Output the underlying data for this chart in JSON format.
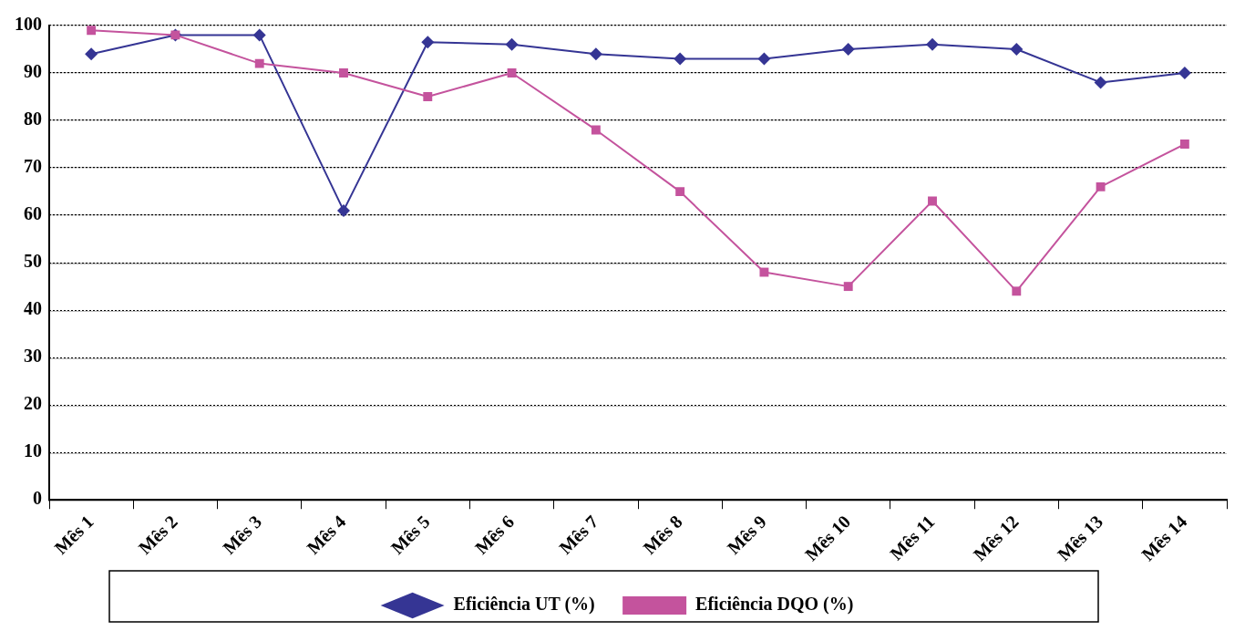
{
  "chart_data": {
    "type": "line",
    "categories": [
      "Mês 1",
      "Mês 2",
      "Mês 3",
      "Mês 4",
      "Mês 5",
      "Mês 6",
      "Mês 7",
      "Mês 8",
      "Mês 9",
      "Mês 10",
      "Mês 11",
      "Mês 12",
      "Mês 13",
      "Mês 14"
    ],
    "series": [
      {
        "name": "Eficiência UT (%)",
        "color": "#353594",
        "marker": "diamond",
        "values": [
          94,
          98,
          98,
          61,
          96.5,
          96,
          94,
          93,
          93,
          95,
          96,
          95,
          88,
          90
        ]
      },
      {
        "name": "Eficiência DQO (%)",
        "color": "#c4539d",
        "marker": "square",
        "values": [
          99,
          98,
          92,
          90,
          85,
          90,
          78,
          65,
          48,
          45,
          63,
          44,
          66,
          75
        ]
      }
    ],
    "ylim": [
      0,
      100
    ],
    "yticks": [
      0,
      10,
      20,
      30,
      40,
      50,
      60,
      70,
      80,
      90,
      100
    ],
    "grid": "y",
    "legend": "bottom",
    "line_style": "solid"
  }
}
